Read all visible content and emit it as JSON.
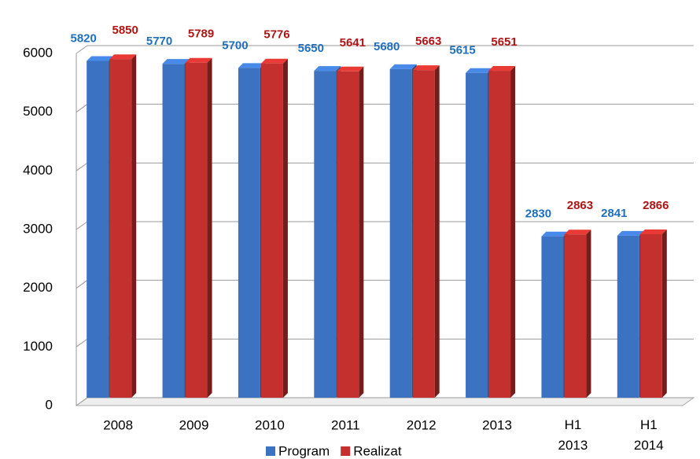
{
  "chart_data": {
    "type": "bar",
    "categories": [
      "2008",
      "2009",
      "2010",
      "2011",
      "2012",
      "2013",
      "H1 2013",
      "H1 2014"
    ],
    "series": [
      {
        "name": "Program",
        "color": "#3b73c2",
        "values": [
          5820,
          5770,
          5700,
          5650,
          5680,
          5615,
          2830,
          2841
        ]
      },
      {
        "name": "Realizat",
        "color": "#c3302d",
        "values": [
          5850,
          5789,
          5776,
          5641,
          5663,
          5651,
          2863,
          2866
        ]
      }
    ],
    "label_colors": [
      "#1f6fbf",
      "#b01515"
    ],
    "ylim": [
      0,
      6000
    ],
    "yticks": [
      0,
      1000,
      2000,
      3000,
      4000,
      5000,
      6000
    ],
    "grid": true
  }
}
